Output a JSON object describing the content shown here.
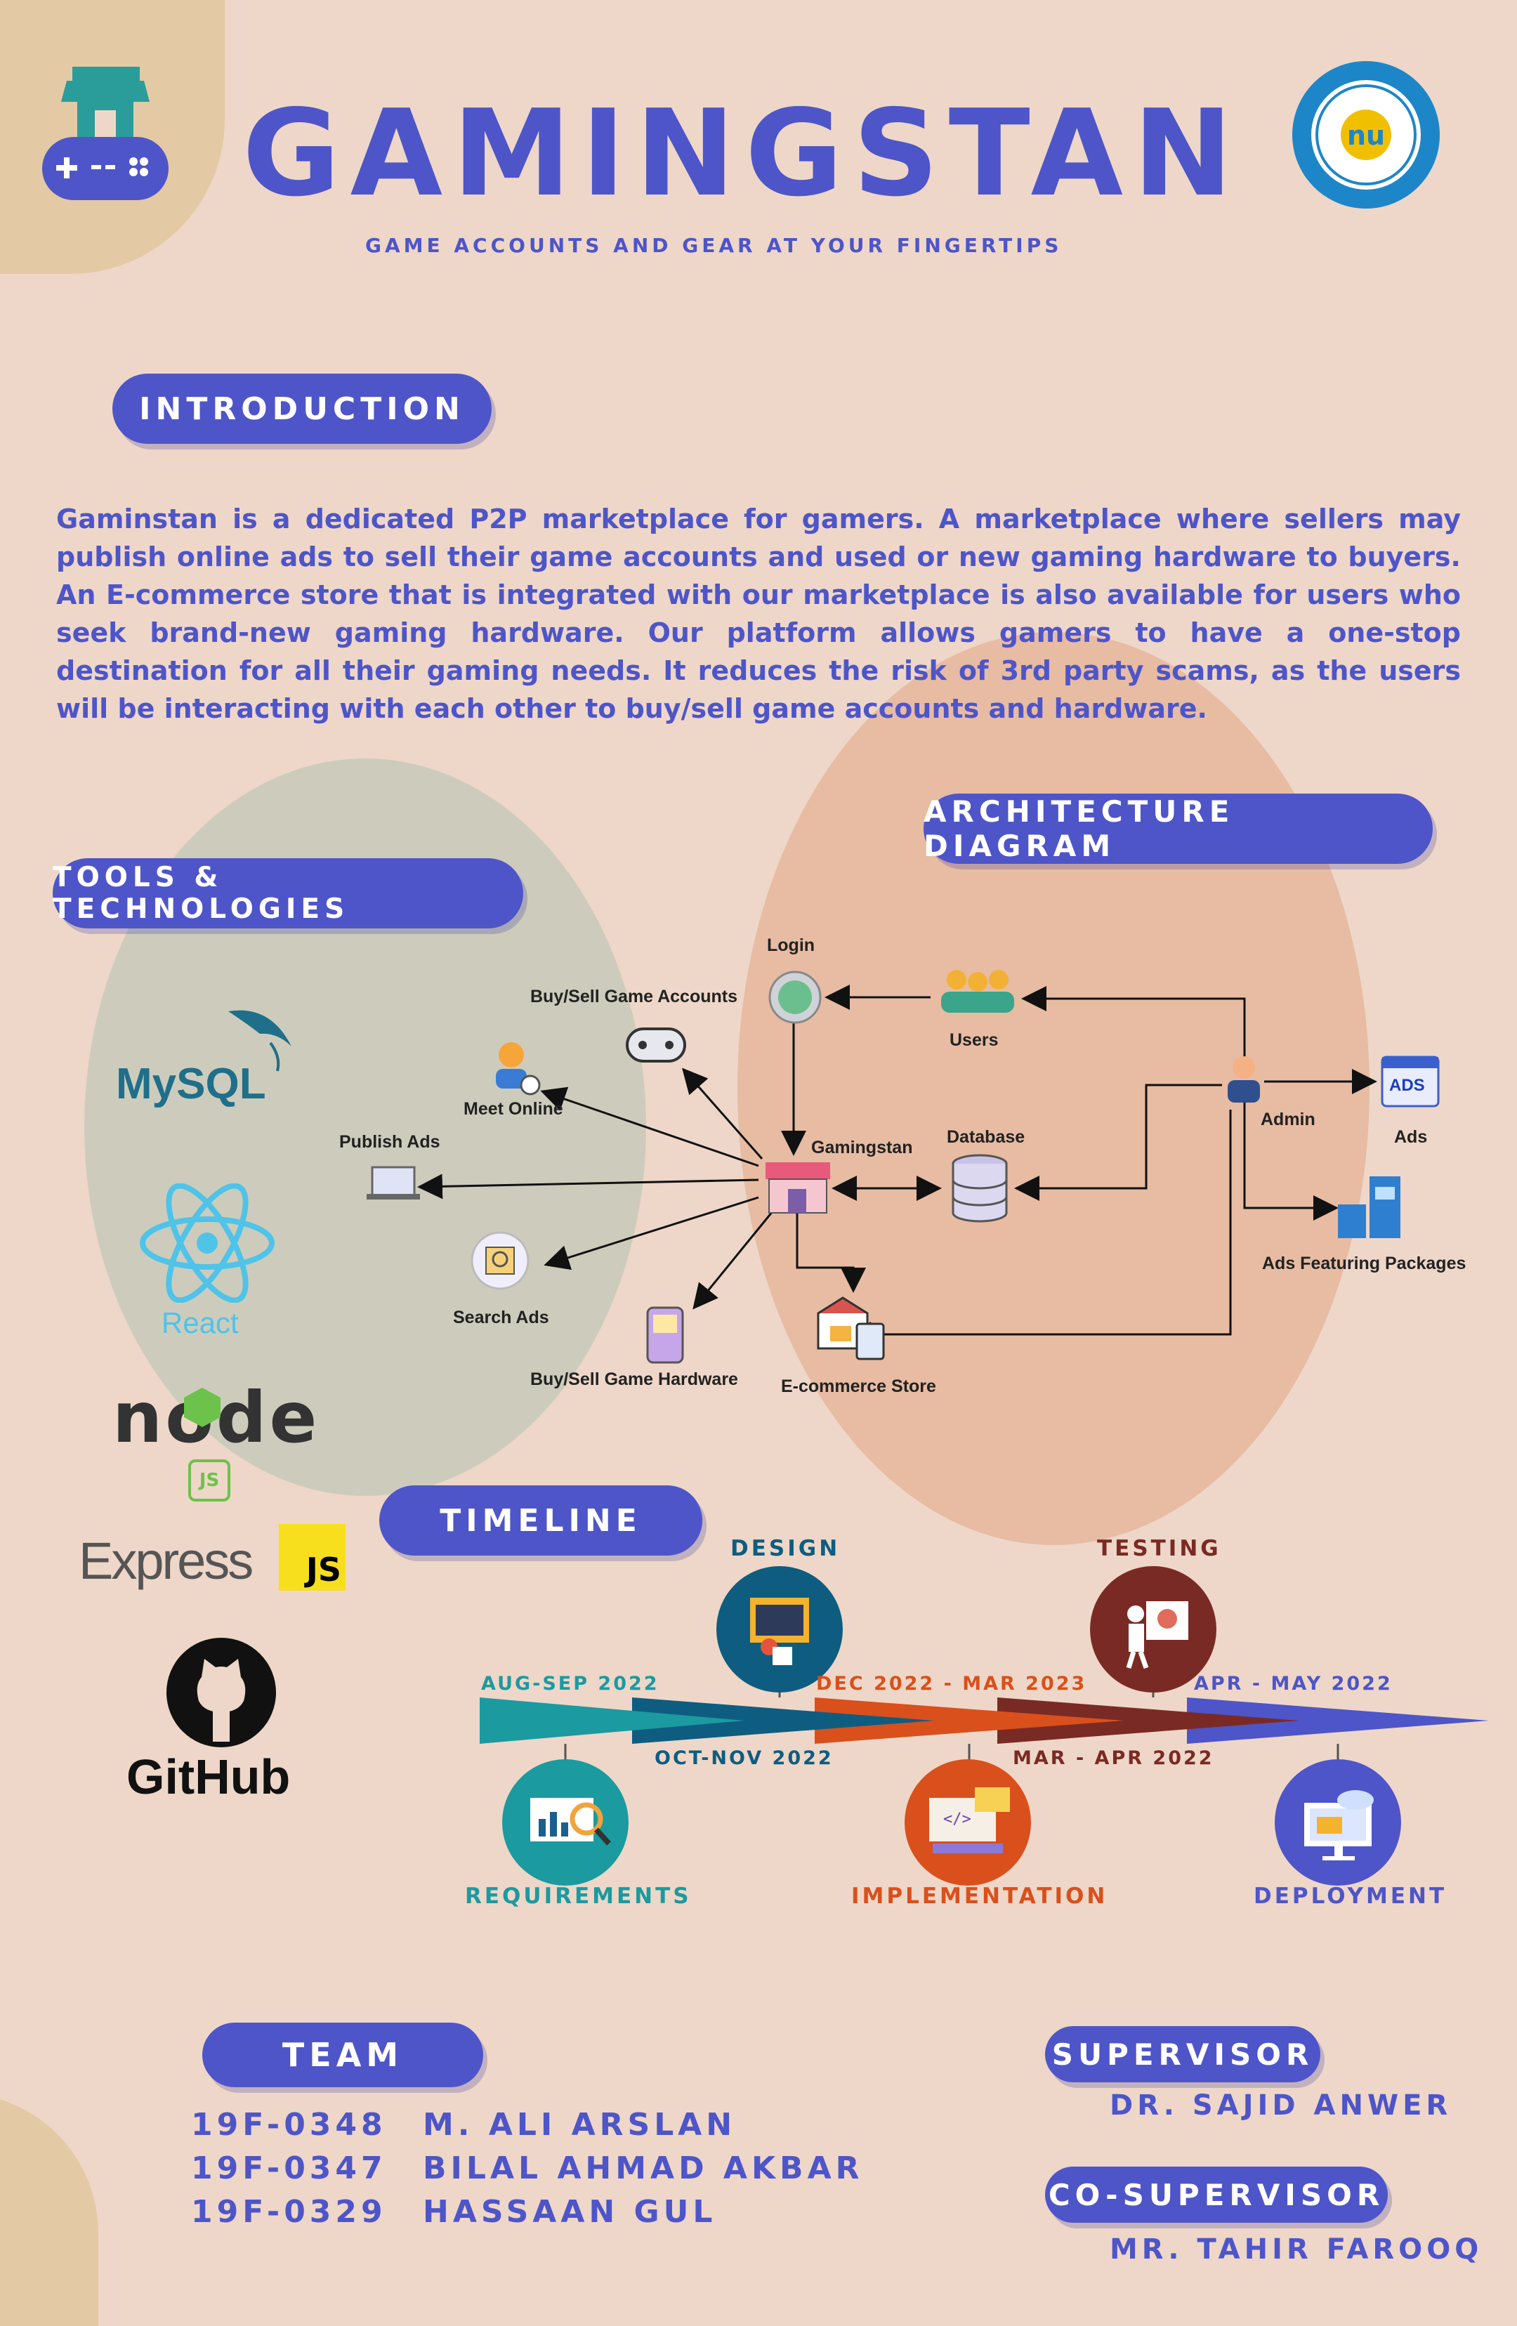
{
  "header": {
    "title": "GAMINGSTAN",
    "subtitle": "GAME ACCOUNTS AND GEAR AT YOUR FINGERTIPS",
    "logo_icon": "game-store-controller-icon",
    "seal_icon": "university-seal-icon",
    "seal_text": "NATIONAL UNIVERSITY OF COMPUTER & EMERGING SCIENCES"
  },
  "sections": {
    "introduction": "INTRODUCTION",
    "architecture": "ARCHITECTURE DIAGRAM",
    "tools": "TOOLS & TECHNOLOGIES",
    "timeline": "TIMELINE",
    "team": "TEAM",
    "supervisor": "SUPERVISOR",
    "co_supervisor": "CO-SUPERVISOR"
  },
  "introduction_text": "Gaminstan is a dedicated P2P marketplace for gamers.  A marketplace where sellers may publish online ads to sell their game accounts and used or new gaming hardware to buyers. An E-commerce store that is integrated with our marketplace is also available for users who seek brand-new gaming hardware. Our platform allows gamers to have a one-stop destination for all their gaming needs. It reduces the risk of 3rd party scams, as the users will be interacting with each other to buy/sell game accounts and hardware.",
  "tools": {
    "mysql": "MySQL",
    "react": "React",
    "node": "node",
    "node_js": "JS",
    "express": "Express",
    "express_js": "JS",
    "github": "GitHub"
  },
  "diagram": {
    "login": "Login",
    "users": "Users",
    "buy_sell_accounts": "Buy/Sell Game Accounts",
    "meet_online": "Meet Online",
    "publish_ads": "Publish Ads",
    "gamingstan": "Gamingstan",
    "database": "Database",
    "admin": "Admin",
    "ads": "Ads",
    "ads_icon_text": "ADS",
    "ads_featuring": "Ads Featuring Packages",
    "search_ads": "Search Ads",
    "buy_sell_hardware": "Buy/Sell Game Hardware",
    "ecommerce": "E-commerce Store"
  },
  "timeline": {
    "dates": {
      "aug_sep": "AUG-SEP 2022",
      "oct_nov": "OCT-NOV 2022",
      "dec_mar": "DEC 2022 - MAR 2023",
      "mar_apr": "MAR - APR 2022",
      "apr_may": "APR - MAY 2022"
    },
    "phases": {
      "requirements": "REQUIREMENTS",
      "design": "DESIGN",
      "implementation": "IMPLEMENTATION",
      "testing": "TESTING",
      "deployment": "DEPLOYMENT"
    },
    "colors": {
      "requirements": "#1b9aa0",
      "design": "#0e5d80",
      "implementation": "#d9501c",
      "testing": "#7a2a24",
      "deployment": "#4e55c9"
    }
  },
  "team": [
    {
      "id": "19F-0348",
      "name": "M. ALI ARSLAN"
    },
    {
      "id": "19F-0347",
      "name": "BILAL AHMAD AKBAR"
    },
    {
      "id": "19F-0329",
      "name": "HASSAAN GUL"
    }
  ],
  "supervisor_name": "DR. SAJID ANWER",
  "co_supervisor_name": "MR. TAHIR FAROOQ"
}
